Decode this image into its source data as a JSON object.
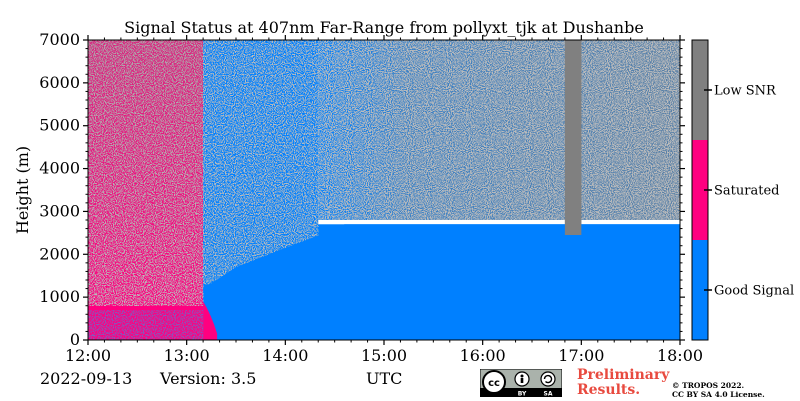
{
  "chart_data": {
    "type": "heatmap",
    "title": "Signal Status at 407nm Far-Range from pollyxt_tjk at Dushanbe",
    "xlabel": "",
    "ylabel": "Height (m)",
    "x_ticks": [
      "12:00",
      "13:00",
      "14:00",
      "15:00",
      "16:00",
      "17:00",
      "18:00"
    ],
    "x_range_hours": [
      12,
      18
    ],
    "y_ticks": [
      0,
      1000,
      2000,
      3000,
      4000,
      5000,
      6000,
      7000
    ],
    "ylim": [
      0,
      7000
    ],
    "colorbar": {
      "categories": [
        "Good Signal",
        "Saturated",
        "Low SNR"
      ],
      "colors": [
        "#0080ff",
        "#ff0080",
        "#808080"
      ]
    },
    "regions": [
      {
        "status": "Saturated",
        "time_start": "12:00",
        "time_end": "13:10",
        "height_start": 0,
        "height_end": 7000,
        "note": "speckled with Low SNR above ~1000 m"
      },
      {
        "status": "Good Signal",
        "time_start": "13:10",
        "time_end": "18:00",
        "height_start": 0,
        "height_end": 2700
      },
      {
        "status": "Low SNR",
        "time_start": "14:20",
        "time_end": "18:00",
        "height_start": 2800,
        "height_end": 7000,
        "note": "mixed with Good Signal"
      },
      {
        "status": "Low SNR",
        "time_start": "16:50",
        "time_end": "17:00",
        "height_start": 2400,
        "height_end": 7000
      }
    ]
  },
  "footer": {
    "date": "2022-09-13",
    "version": "Version: 3.5",
    "xaxis_label": "UTC",
    "prelim_line1": "Preliminary",
    "prelim_line2": "Results.",
    "copyright_line1": "© TROPOS 2022.",
    "copyright_line2": "CC BY SA 4.0 License.",
    "license_badge": "cc-by-sa-icon"
  }
}
